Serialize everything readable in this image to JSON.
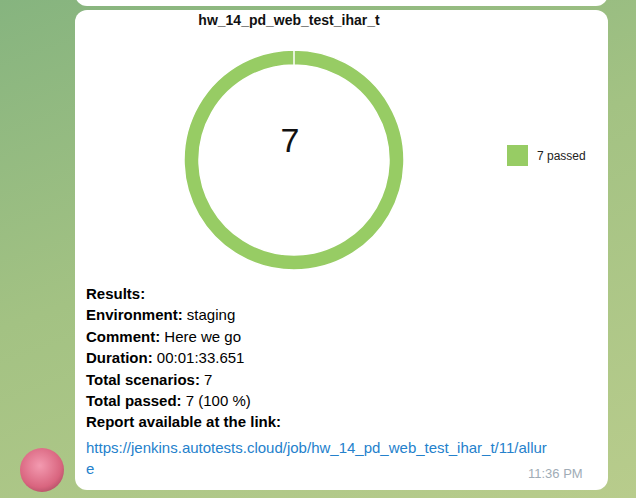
{
  "chart_data": {
    "type": "pie",
    "title": "hw_14_pd_web_test_ihar_t",
    "categories": [
      "passed"
    ],
    "values": [
      7
    ],
    "colors": [
      "#97cc64"
    ],
    "total": 7,
    "legend": "right",
    "legend_labels": [
      "7 passed"
    ]
  },
  "message": {
    "heading": "Results:",
    "fields": [
      {
        "label": "Environment:",
        "value": "staging"
      },
      {
        "label": "Comment:",
        "value": "Here we go"
      },
      {
        "label": "Duration:",
        "value": "00:01:33.651"
      },
      {
        "label": "Total scenarios:",
        "value": "7"
      },
      {
        "label": "Total passed:",
        "value": "7 (100 %)"
      }
    ],
    "link_label": "Report available at the link:",
    "link": "https://jenkins.autotests.cloud/job/hw_14_pd_web_test_ihar_t/11/allure",
    "time": "11:36 PM"
  }
}
